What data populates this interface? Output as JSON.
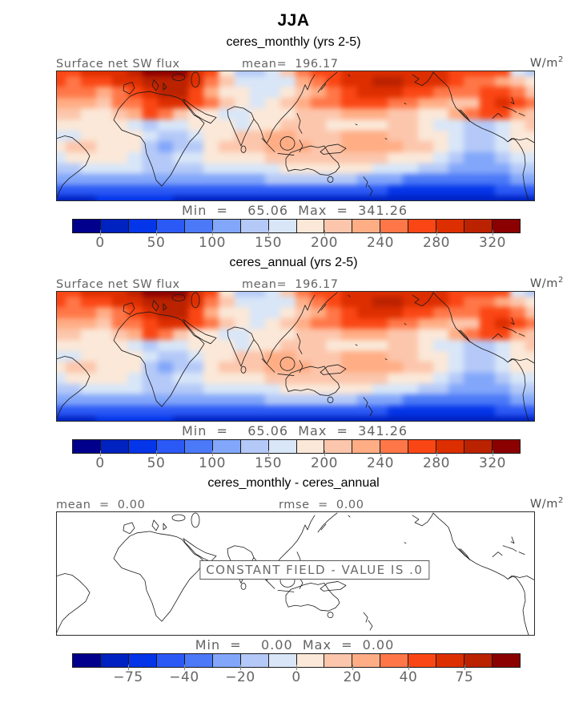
{
  "title": "JJA",
  "unit": {
    "base": "W/m",
    "exp": "2"
  },
  "panels": [
    {
      "subtitle": "ceres_monthly (yrs 2-5)",
      "field_label": "Surface net SW flux",
      "stats": [
        {
          "label": "mean=",
          "value": "196.17"
        }
      ],
      "min_label": "Min  =",
      "min_value": "65.06",
      "max_label": "Max  =",
      "max_value": "341.26",
      "ticks": [
        {
          "label": "0",
          "edge": 1
        },
        {
          "label": "50",
          "edge": 3
        },
        {
          "label": "100",
          "edge": 5
        },
        {
          "label": "150",
          "edge": 7
        },
        {
          "label": "200",
          "edge": 9
        },
        {
          "label": "240",
          "edge": 11
        },
        {
          "label": "280",
          "edge": 13
        },
        {
          "label": "320",
          "edge": 15
        }
      ]
    },
    {
      "subtitle": "ceres_annual (yrs 2-5)",
      "field_label": "Surface net SW flux",
      "stats": [
        {
          "label": "mean=",
          "value": "196.17"
        }
      ],
      "min_label": "Min  =",
      "min_value": "65.06",
      "max_label": "Max  =",
      "max_value": "341.26",
      "ticks": [
        {
          "label": "0",
          "edge": 1
        },
        {
          "label": "50",
          "edge": 3
        },
        {
          "label": "100",
          "edge": 5
        },
        {
          "label": "150",
          "edge": 7
        },
        {
          "label": "200",
          "edge": 9
        },
        {
          "label": "240",
          "edge": 11
        },
        {
          "label": "280",
          "edge": 13
        },
        {
          "label": "320",
          "edge": 15
        }
      ]
    },
    {
      "subtitle": "ceres_monthly - ceres_annual",
      "field_label": "",
      "stats": [
        {
          "label": "mean  =",
          "value": "0.00"
        },
        {
          "label": "rmse  =",
          "value": "0.00"
        }
      ],
      "note": "CONSTANT FIELD - VALUE IS .0",
      "min_label": "Min  =",
      "min_value": "0.00",
      "max_label": "Max  =",
      "max_value": "0.00",
      "ticks": [
        {
          "label": "−75",
          "edge": 2
        },
        {
          "label": "−40",
          "edge": 4
        },
        {
          "label": "−20",
          "edge": 6
        },
        {
          "label": "0",
          "edge": 8
        },
        {
          "label": "20",
          "edge": 10
        },
        {
          "label": "40",
          "edge": 12
        },
        {
          "label": "75",
          "edge": 14
        }
      ]
    }
  ],
  "chart_data": {
    "type": "heatmap",
    "season": "JJA",
    "variable": "Surface net SW flux",
    "units": "W/m^2",
    "palette": [
      "#00008c",
      "#0022c0",
      "#0435e8",
      "#2b59f5",
      "#4b79f7",
      "#82a6fa",
      "#b4c9f8",
      "#d8e6f8",
      "#fbe8d8",
      "#fcc6ac",
      "#ffad85",
      "#ff7748",
      "#fa4614",
      "#dd2e00",
      "#bb2200",
      "#8b0000"
    ],
    "map_grid": [
      "ccdddefffdc86679bccdddddddcccc76",
      "cbccddeeedb97777abcddeedddcbba98",
      "bbbabcdeeca887789abcdddccbbbccb9",
      "aaa9bbcddcb98789abbcccbbaa99cdcb",
      "99889acb98877888999aaa9988abcca9",
      "88888767788878899988889987766789",
      "77888876678899aa999aaa9988766788",
      "89988865668999aaa99aaaa998766788",
      "78888766778888999999998887655677",
      "66777766667777788888877766555566",
      "55555555555555666666555444444455",
      "33333333333333333333332222222333",
      "11122222111111111111111111111111"
    ],
    "maps": [
      {
        "name": "ceres_monthly",
        "years": "yrs 2-5",
        "mean": 196.17,
        "min": 65.06,
        "max": 341.26,
        "colorbar_ticks": [
          0,
          50,
          100,
          150,
          200,
          240,
          280,
          320
        ]
      },
      {
        "name": "ceres_annual",
        "years": "yrs 2-5",
        "mean": 196.17,
        "min": 65.06,
        "max": 341.26,
        "colorbar_ticks": [
          0,
          50,
          100,
          150,
          200,
          240,
          280,
          320
        ]
      },
      {
        "name": "ceres_monthly - ceres_annual",
        "mean": 0.0,
        "rmse": 0.0,
        "min": 0.0,
        "max": 0.0,
        "colorbar_ticks": [
          -75,
          -40,
          -20,
          0,
          20,
          40,
          75
        ],
        "note": "CONSTANT FIELD - VALUE IS .0"
      }
    ]
  }
}
